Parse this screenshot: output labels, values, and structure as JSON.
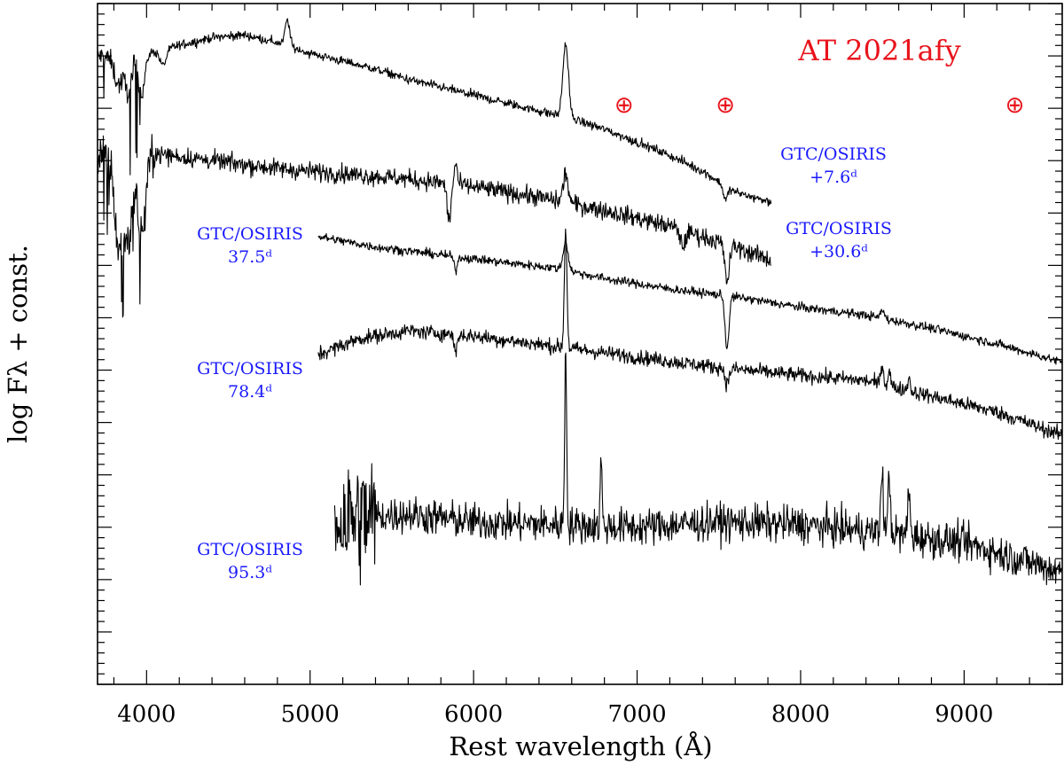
{
  "chart_data": {
    "type": "line",
    "title": "AT 2021afy",
    "xlabel": "Rest wavelength (Å)",
    "ylabel": "log Fλ + const.",
    "xlim": [
      3700,
      9600
    ],
    "ylim": [
      -10.6,
      -8.0
    ],
    "xticks": [
      4000,
      5000,
      6000,
      7000,
      8000,
      9000
    ],
    "xtick_labels": [
      "4000",
      "5000",
      "6000",
      "7000",
      "8000",
      "9000"
    ],
    "telluric_symbol": "⊕",
    "telluric_markers": [
      6920,
      7540,
      9310
    ],
    "series": [
      {
        "name": "GTC/OSIRIS +7.6d",
        "label_line1": "GTC/OSIRIS",
        "label_line2": "+7.6ᵈ",
        "x_range": [
          3700,
          7820
        ],
        "noise": 0.012,
        "points": [
          [
            3700,
            -8.2
          ],
          [
            3800,
            -8.21
          ],
          [
            3900,
            -8.2
          ],
          [
            4000,
            -8.19
          ],
          [
            4200,
            -8.16
          ],
          [
            4400,
            -8.13
          ],
          [
            4600,
            -8.12
          ],
          [
            4800,
            -8.15
          ],
          [
            5000,
            -8.19
          ],
          [
            5200,
            -8.22
          ],
          [
            5400,
            -8.25
          ],
          [
            5600,
            -8.29
          ],
          [
            5800,
            -8.32
          ],
          [
            6000,
            -8.35
          ],
          [
            6200,
            -8.38
          ],
          [
            6400,
            -8.41
          ],
          [
            6600,
            -8.44
          ],
          [
            6800,
            -8.48
          ],
          [
            7000,
            -8.53
          ],
          [
            7200,
            -8.58
          ],
          [
            7400,
            -8.64
          ],
          [
            7600,
            -8.72
          ],
          [
            7820,
            -8.76
          ]
        ],
        "lines": [
          [
            3830,
            -0.1,
            25
          ],
          [
            3890,
            -0.13,
            20
          ],
          [
            3970,
            -0.15,
            20
          ],
          [
            4101,
            -0.06,
            20
          ],
          [
            4861,
            0.1,
            14
          ],
          [
            6563,
            0.28,
            17
          ],
          [
            7540,
            -0.05,
            14
          ]
        ],
        "noisy_below": 4000,
        "x_positions_are_data": true
      },
      {
        "name": "GTC/OSIRIS +30.6d",
        "label_line1": "GTC/OSIRIS",
        "label_line2": "+30.6ᵈ",
        "x_range": [
          3700,
          7820
        ],
        "noise": 0.025,
        "points": [
          [
            3700,
            -8.58
          ],
          [
            4000,
            -8.57
          ],
          [
            4400,
            -8.6
          ],
          [
            4800,
            -8.63
          ],
          [
            5200,
            -8.65
          ],
          [
            5600,
            -8.67
          ],
          [
            6000,
            -8.7
          ],
          [
            6400,
            -8.74
          ],
          [
            6800,
            -8.79
          ],
          [
            7200,
            -8.85
          ],
          [
            7600,
            -8.93
          ],
          [
            7820,
            -8.98
          ]
        ],
        "lines": [
          [
            3830,
            -0.35,
            25
          ],
          [
            3890,
            -0.3,
            25
          ],
          [
            3970,
            -0.3,
            25
          ],
          [
            5850,
            -0.14,
            12
          ],
          [
            5890,
            0.08,
            10
          ],
          [
            6563,
            0.11,
            15
          ],
          [
            7280,
            -0.06,
            15
          ],
          [
            7550,
            -0.14,
            14
          ]
        ],
        "noisy_below": 4050
      },
      {
        "name": "GTC/OSIRIS 37.5d",
        "label_line1": "GTC/OSIRIS",
        "label_line2": "37.5ᵈ",
        "x_range": [
          5050,
          9600
        ],
        "noise": 0.012,
        "points": [
          [
            5050,
            -8.89
          ],
          [
            5400,
            -8.93
          ],
          [
            5800,
            -8.96
          ],
          [
            6200,
            -8.99
          ],
          [
            6500,
            -9.01
          ],
          [
            6800,
            -9.05
          ],
          [
            7200,
            -9.09
          ],
          [
            7600,
            -9.12
          ],
          [
            8000,
            -9.16
          ],
          [
            8400,
            -9.19
          ],
          [
            8800,
            -9.24
          ],
          [
            9200,
            -9.3
          ],
          [
            9600,
            -9.37
          ]
        ],
        "lines": [
          [
            5890,
            -0.05,
            10
          ],
          [
            6563,
            0.11,
            15
          ],
          [
            7550,
            -0.2,
            12
          ],
          [
            8500,
            0.03,
            12
          ]
        ],
        "noisy_below": 0
      },
      {
        "name": "GTC/OSIRIS 78.4d",
        "label_line1": "GTC/OSIRIS",
        "label_line2": "78.4ᵈ",
        "x_range": [
          5050,
          9600
        ],
        "noise": 0.02,
        "points": [
          [
            5050,
            -9.34
          ],
          [
            5300,
            -9.28
          ],
          [
            5600,
            -9.25
          ],
          [
            6000,
            -9.27
          ],
          [
            6500,
            -9.31
          ],
          [
            7000,
            -9.35
          ],
          [
            7500,
            -9.39
          ],
          [
            8000,
            -9.42
          ],
          [
            8400,
            -9.44
          ],
          [
            8800,
            -9.5
          ],
          [
            9200,
            -9.56
          ],
          [
            9600,
            -9.65
          ]
        ],
        "lines": [
          [
            5890,
            -0.06,
            10
          ],
          [
            6563,
            0.45,
            8
          ],
          [
            7550,
            -0.06,
            12
          ],
          [
            8498,
            0.08,
            8
          ],
          [
            8542,
            0.06,
            8
          ],
          [
            8662,
            0.05,
            8
          ]
        ],
        "noisy_below": 0
      },
      {
        "name": "GTC/OSIRIS 95.3d",
        "label_line1": "GTC/OSIRIS",
        "label_line2": "95.3ᵈ",
        "x_range": [
          5150,
          9600
        ],
        "noise": 0.05,
        "points": [
          [
            5150,
            -9.97
          ],
          [
            5600,
            -9.95
          ],
          [
            6000,
            -9.98
          ],
          [
            6500,
            -9.99
          ],
          [
            7000,
            -10.0
          ],
          [
            7500,
            -9.98
          ],
          [
            8000,
            -9.99
          ],
          [
            8500,
            -10.02
          ],
          [
            9000,
            -10.06
          ],
          [
            9600,
            -10.17
          ]
        ],
        "lines": [
          [
            6563,
            0.68,
            6
          ],
          [
            6780,
            0.28,
            5
          ],
          [
            8498,
            0.22,
            8
          ],
          [
            8542,
            0.2,
            8
          ],
          [
            8662,
            0.16,
            8
          ]
        ],
        "noisy_below": 5400
      }
    ]
  }
}
